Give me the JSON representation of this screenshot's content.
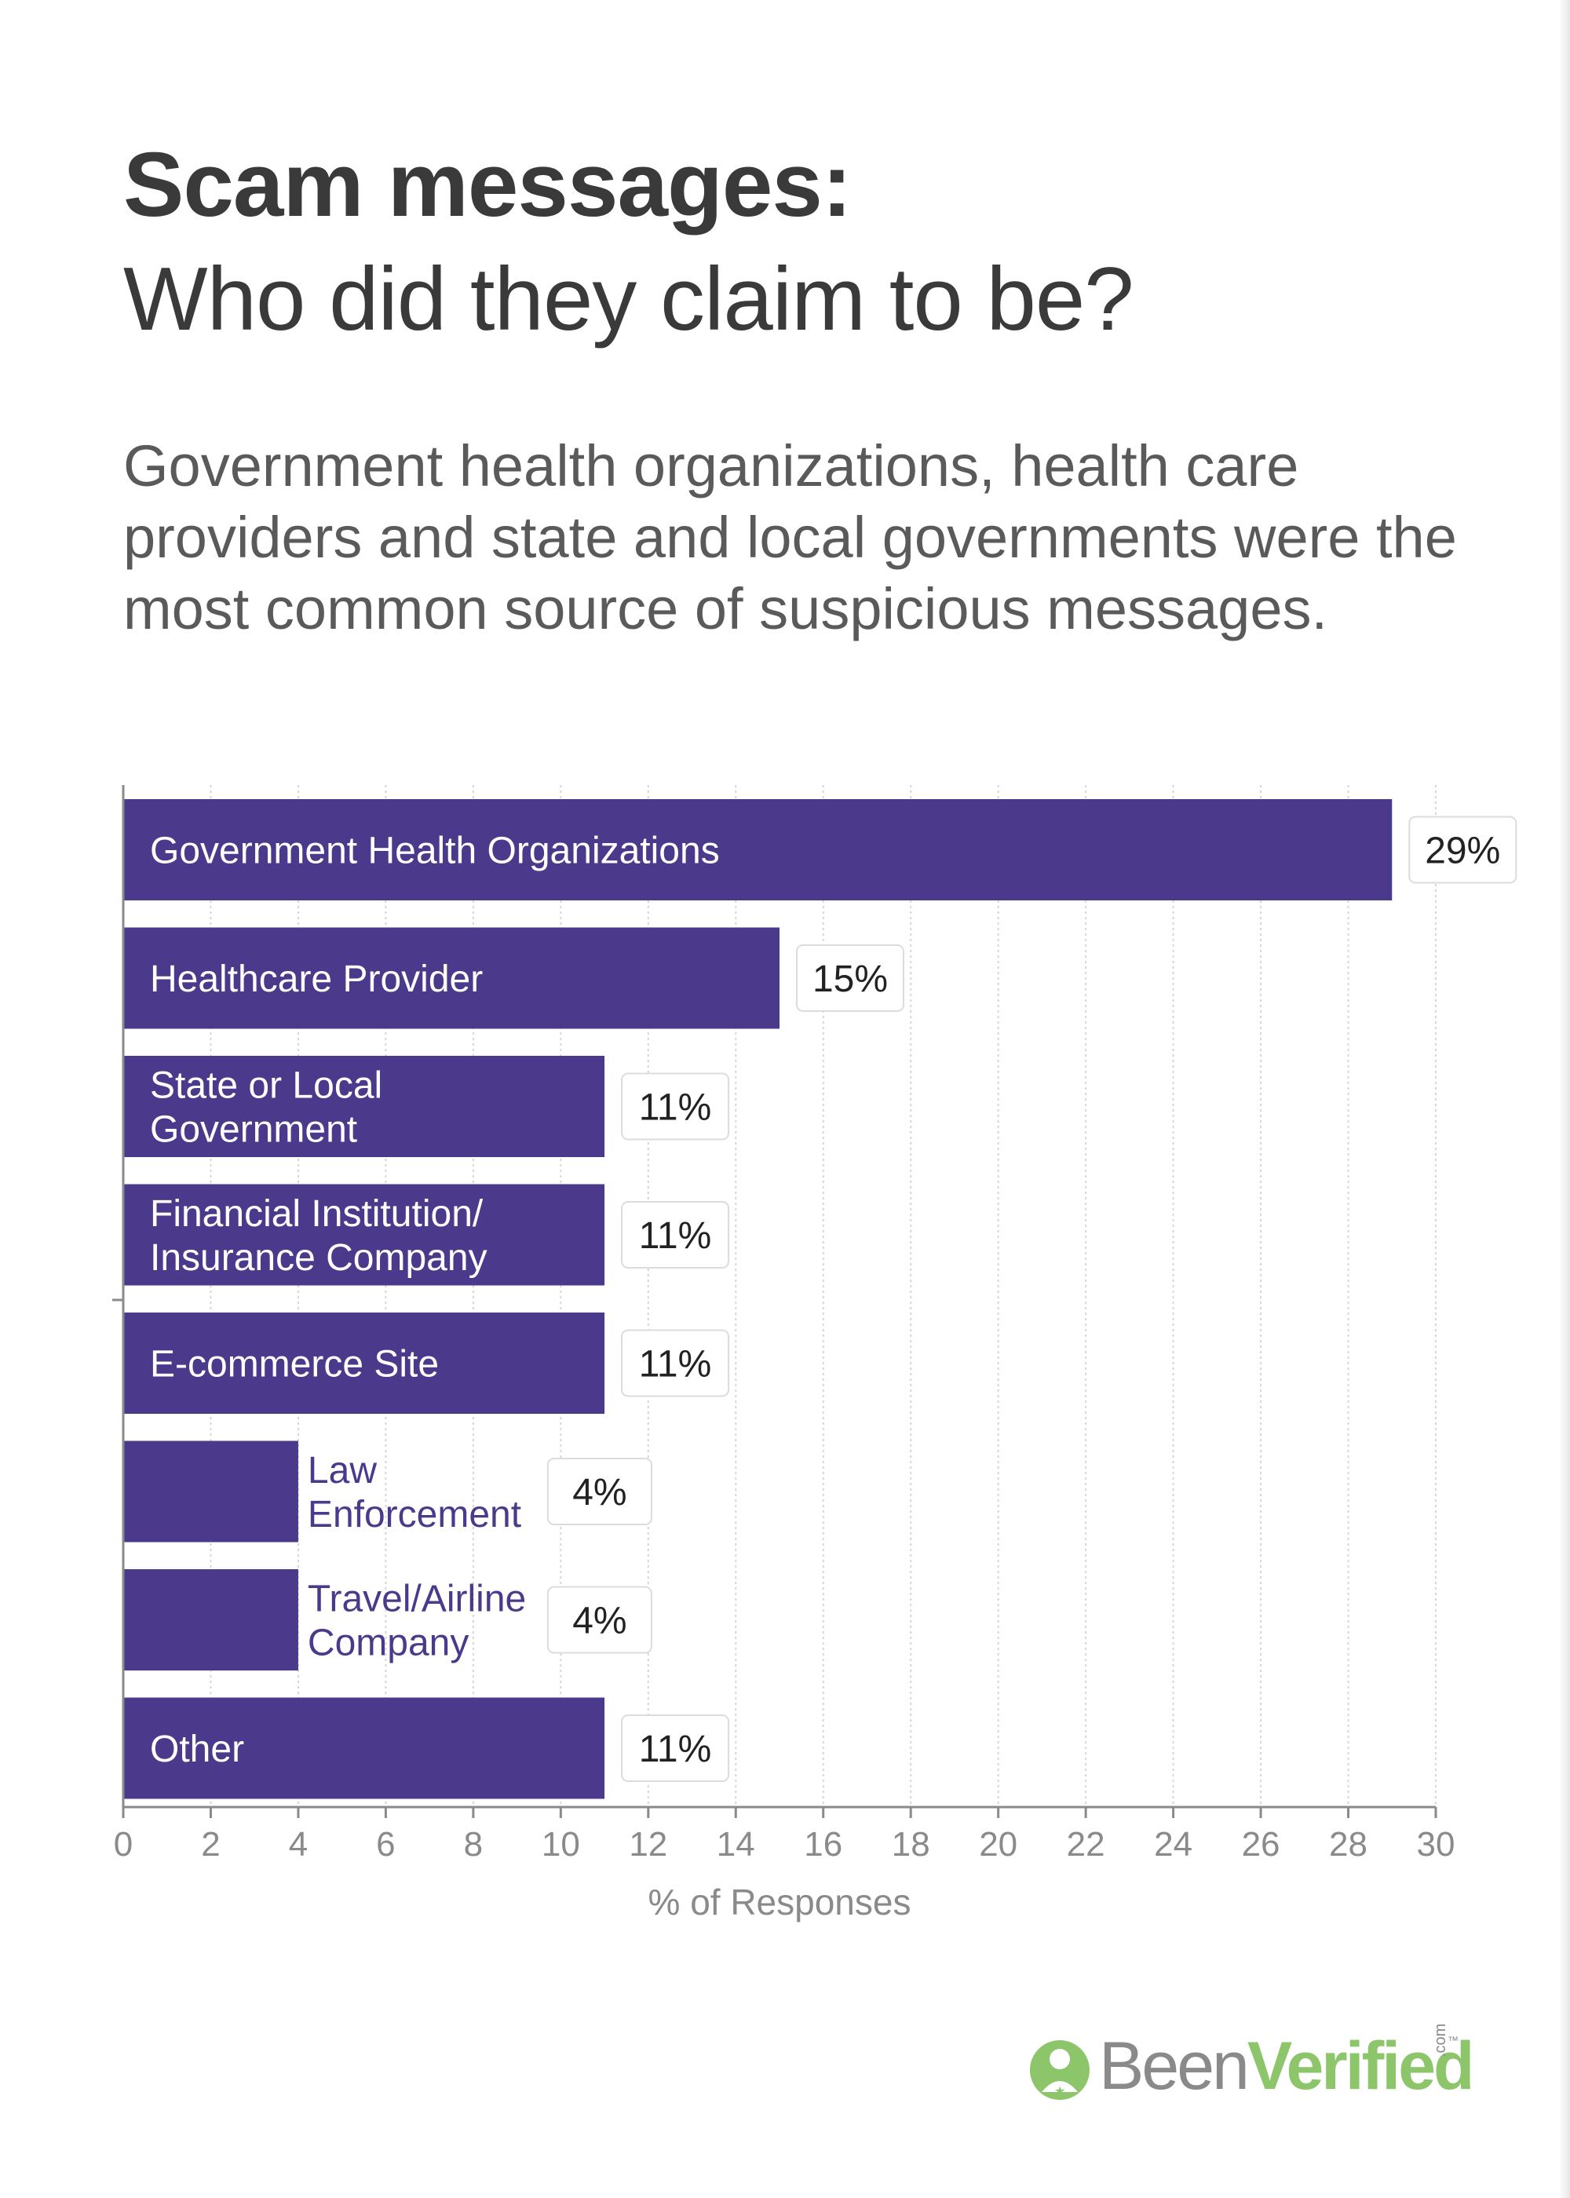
{
  "title_line1": "Scam messages:",
  "title_line2": "Who did they claim to be?",
  "subtitle": "Government health organizations, health care providers and state and local governments were the most common source of suspicious messages.",
  "logo": {
    "text_been": "Been",
    "text_verified": "Verified",
    "suffix": ".com",
    "trademark": "™",
    "icon": "person-badge-icon"
  },
  "colors": {
    "bar": "#4b3a8c",
    "label_outside": "#4b3a8c",
    "grid": "#d6d6d6",
    "axis_text": "#8a8a8a",
    "logo_green": "#8cc56a",
    "logo_gray": "#8a8a8a"
  },
  "chart_data": {
    "type": "bar",
    "orientation": "horizontal",
    "categories": [
      "Government Health Organizations",
      "Healthcare Provider",
      "State or Local Government",
      "Financial Institution/ Insurance Company",
      "E-commerce Site",
      "Law Enforcement",
      "Travel/Airline Company",
      "Other"
    ],
    "values": [
      29,
      15,
      11,
      11,
      11,
      4,
      4,
      11
    ],
    "value_labels": [
      "29%",
      "15%",
      "11%",
      "11%",
      "11%",
      "4%",
      "4%",
      "11%"
    ],
    "xlabel": "% of Responses",
    "ylabel": "",
    "xlim": [
      0,
      30
    ],
    "xticks": [
      0,
      2,
      4,
      6,
      8,
      10,
      12,
      14,
      16,
      18,
      20,
      22,
      24,
      26,
      28,
      30
    ],
    "grid": "vertical dotted",
    "legend": "none"
  }
}
